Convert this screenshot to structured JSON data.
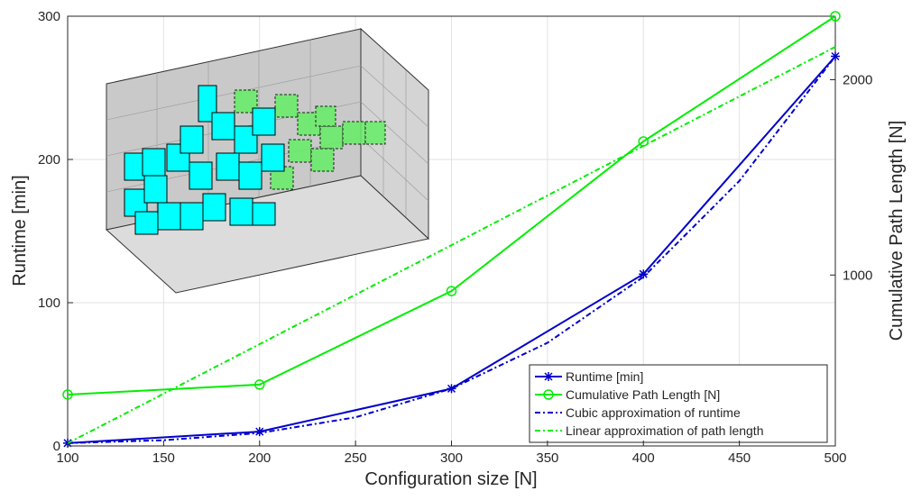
{
  "chart_data": {
    "type": "line",
    "x_label": "Configuration size [N]",
    "y_label": "Runtime [min]",
    "y2_label": "Cumulative Path Length [N]",
    "x": [
      100,
      200,
      300,
      400,
      500
    ],
    "xlim": [
      100,
      500
    ],
    "xticks": [
      100,
      150,
      200,
      250,
      300,
      350,
      400,
      450,
      500
    ],
    "ylim": [
      0,
      300
    ],
    "yticks": [
      0,
      100,
      200,
      300
    ],
    "y2lim": [
      125,
      2325
    ],
    "y2ticks": [
      1000,
      2000
    ],
    "grid": true,
    "legend": "lower right",
    "series": [
      {
        "name": "Runtime [min]",
        "color": "#0000cc",
        "marker": "asterisk",
        "dash": "solid",
        "values": [
          2,
          10,
          40,
          120,
          272
        ]
      },
      {
        "name": "Cumulative Path Length [N]",
        "color": "#00ee00",
        "marker": "circle",
        "dash": "solid",
        "axis": "y2",
        "values": [
          388,
          439,
          918,
          1684,
          2325
        ]
      },
      {
        "name": "Cubic approximation of runtime",
        "color": "#0000cc",
        "marker": "none",
        "dash": "dashdot",
        "x": [
          100,
          150,
          200,
          250,
          300,
          350,
          400,
          450,
          500
        ],
        "values": [
          2,
          4,
          9,
          20,
          40,
          72,
          118,
          185,
          272
        ]
      },
      {
        "name": "Linear approximation of path length",
        "color": "#00ee00",
        "marker": "none",
        "dash": "dashdot",
        "axis": "y2",
        "values": [
          139,
          646,
          1153,
          1661,
          2168
        ]
      }
    ]
  }
}
